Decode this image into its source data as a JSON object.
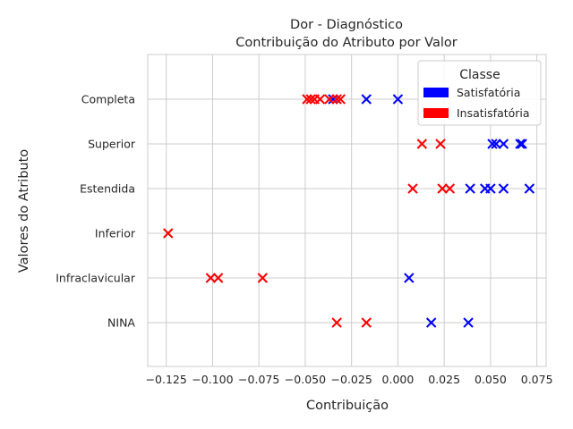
{
  "chart_data": {
    "type": "scatter",
    "title": "Dor - Diagnóstico",
    "subtitle": "Contribuição do Atributo por Valor",
    "xlabel": "Contribuição",
    "ylabel": "Valores do Atributo",
    "xlim": [
      -0.135,
      0.08
    ],
    "xticks": [
      -0.125,
      -0.1,
      -0.075,
      -0.05,
      -0.025,
      0.0,
      0.025,
      0.05,
      0.075
    ],
    "xtick_labels": [
      "−0.125",
      "−0.100",
      "−0.075",
      "−0.050",
      "−0.025",
      "0.000",
      "0.025",
      "0.050",
      "0.075"
    ],
    "categories": [
      "Completa",
      "Superior",
      "Estendida",
      "Inferior",
      "Infraclavicular",
      "NINA"
    ],
    "grid": true,
    "legend": {
      "title": "Classe",
      "position": "top-right",
      "entries": [
        {
          "label": "Satisfatória",
          "color": "#0000ff"
        },
        {
          "label": "Insatisfatória",
          "color": "#ff0000"
        }
      ]
    },
    "series": [
      {
        "name": "Satisfatória",
        "color": "#0000ff",
        "marker": "x",
        "points": [
          {
            "category": "Completa",
            "x": -0.035
          },
          {
            "category": "Completa",
            "x": -0.017
          },
          {
            "category": "Completa",
            "x": 0.0
          },
          {
            "category": "Superior",
            "x": 0.051
          },
          {
            "category": "Superior",
            "x": 0.053
          },
          {
            "category": "Superior",
            "x": 0.057
          },
          {
            "category": "Superior",
            "x": 0.066
          },
          {
            "category": "Superior",
            "x": 0.067
          },
          {
            "category": "Estendida",
            "x": 0.039
          },
          {
            "category": "Estendida",
            "x": 0.047
          },
          {
            "category": "Estendida",
            "x": 0.05
          },
          {
            "category": "Estendida",
            "x": 0.057
          },
          {
            "category": "Estendida",
            "x": 0.071
          },
          {
            "category": "Infraclavicular",
            "x": 0.006
          },
          {
            "category": "NINA",
            "x": 0.018
          },
          {
            "category": "NINA",
            "x": 0.038
          }
        ]
      },
      {
        "name": "Insatisfatória",
        "color": "#ff0000",
        "marker": "x",
        "points": [
          {
            "category": "Completa",
            "x": -0.049
          },
          {
            "category": "Completa",
            "x": -0.047
          },
          {
            "category": "Completa",
            "x": -0.045
          },
          {
            "category": "Completa",
            "x": -0.042
          },
          {
            "category": "Completa",
            "x": -0.037
          },
          {
            "category": "Completa",
            "x": -0.033
          },
          {
            "category": "Completa",
            "x": -0.031
          },
          {
            "category": "Superior",
            "x": 0.013
          },
          {
            "category": "Superior",
            "x": 0.023
          },
          {
            "category": "Estendida",
            "x": 0.008
          },
          {
            "category": "Estendida",
            "x": 0.024
          },
          {
            "category": "Estendida",
            "x": 0.028
          },
          {
            "category": "Inferior",
            "x": -0.124
          },
          {
            "category": "Infraclavicular",
            "x": -0.101
          },
          {
            "category": "Infraclavicular",
            "x": -0.097
          },
          {
            "category": "Infraclavicular",
            "x": -0.073
          },
          {
            "category": "NINA",
            "x": -0.033
          },
          {
            "category": "NINA",
            "x": -0.017
          }
        ]
      }
    ]
  }
}
